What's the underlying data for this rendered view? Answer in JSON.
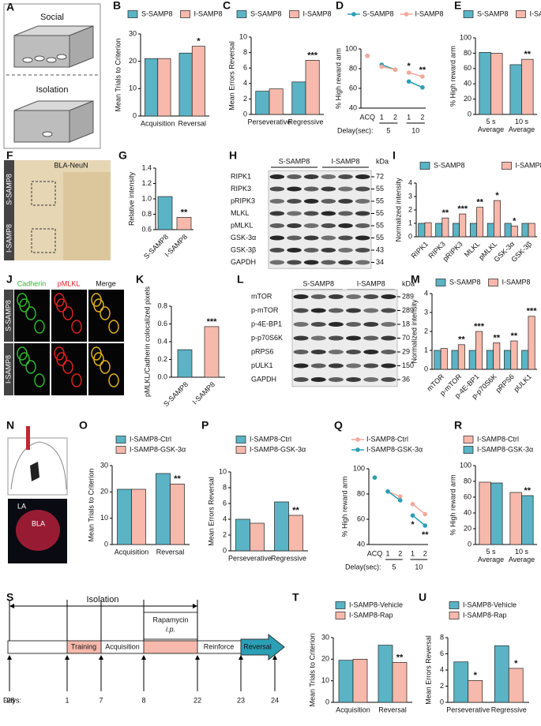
{
  "panels": {
    "A": {
      "letter": "A",
      "social": "Social",
      "isolation": "Isolation"
    },
    "F": {
      "letter": "F",
      "title": "BLA-NeuN",
      "rows": [
        "S-SAMP8",
        "I-SAMP8"
      ]
    },
    "H": {
      "letter": "H",
      "groups": [
        "S-SAMP8",
        "I-SAMP8"
      ],
      "unit": "kDa",
      "bands": [
        [
          "RIPK1",
          72
        ],
        [
          "RIPK3",
          55
        ],
        [
          "pRIPK3",
          55
        ],
        [
          "MLKL",
          55
        ],
        [
          "pMLKL",
          55
        ],
        [
          "GSK-3α",
          55
        ],
        [
          "GSK-3β",
          43
        ],
        [
          "GAPDH",
          34
        ]
      ]
    },
    "J": {
      "letter": "J",
      "columns": [
        "Cadherin",
        "pMLKL",
        "Merge"
      ],
      "rows": [
        "S-SAMP8",
        "I-SAMP8"
      ]
    },
    "L": {
      "letter": "L",
      "groups": [
        "S-SAMP8",
        "I-SAMP8"
      ],
      "unit": "kDa",
      "bands": [
        [
          "mTOR",
          289
        ],
        [
          "p-mTOR",
          289
        ],
        [
          "p-4E-BP1",
          18
        ],
        [
          "p-p70S6K",
          70
        ],
        [
          "pRPS6",
          29
        ],
        [
          "pULK1",
          150
        ],
        [
          "GAPDH",
          36
        ]
      ]
    },
    "N": {
      "letter": "N",
      "regions": [
        "LA",
        "BLA"
      ]
    },
    "S": {
      "letter": "S",
      "isolation": "Isolation",
      "drug": "Rapamycin",
      "route": "i.p.",
      "stages": [
        "Training",
        "Acquisition",
        "Reinforce",
        "Reversal"
      ],
      "days_label": "Days:",
      "days": [
        -28,
        1,
        7,
        8,
        22,
        23,
        24
      ]
    }
  },
  "chart_data": [
    {
      "type": "bar",
      "panel": "B",
      "ylabel": "Mean Trials to Criterion",
      "categories": [
        "Acquisition",
        "Reversal"
      ],
      "series": [
        {
          "name": "S-SAMP8",
          "color": "#5ab4c5",
          "values": [
            21,
            23
          ]
        },
        {
          "name": "I-SAMP8",
          "color": "#f7b9ab",
          "values": [
            21,
            25.5
          ],
          "significance": [
            null,
            "*"
          ]
        }
      ],
      "ylim": [
        0,
        30
      ],
      "yticks": [
        0,
        10,
        20,
        30
      ],
      "legend": "top"
    },
    {
      "type": "bar",
      "panel": "C",
      "ylabel": "Mean Errors Reversal",
      "categories": [
        "Perseverative",
        "Regressive"
      ],
      "series": [
        {
          "name": "S-SAMP8",
          "color": "#5ab4c5",
          "values": [
            3,
            4.2
          ]
        },
        {
          "name": "I-SAMP8",
          "color": "#f7b9ab",
          "values": [
            3.3,
            7
          ],
          "significance": [
            null,
            "***"
          ]
        }
      ],
      "ylim": [
        0,
        10
      ],
      "yticks": [
        0,
        2,
        4,
        6,
        8,
        10
      ],
      "legend": "top"
    },
    {
      "type": "line",
      "panel": "D",
      "ylabel": "% High reward arm",
      "categories": [
        "ACQ",
        "1",
        "2",
        "1",
        "2"
      ],
      "x_title": "Delay(sec):",
      "x_groups": [
        "5",
        "10"
      ],
      "series": [
        {
          "name": "S-SAMP8",
          "color": "#2a9fb5",
          "values": [
            93,
            84,
            79,
            67,
            61
          ]
        },
        {
          "name": "I-SAMP8",
          "color": "#f4a999",
          "values": [
            93,
            82,
            79,
            76,
            72
          ],
          "significance": [
            null,
            null,
            null,
            "*",
            "**"
          ]
        }
      ],
      "ylim": [
        40,
        100
      ],
      "yticks": [
        40,
        60,
        80,
        100
      ],
      "legend": "top"
    },
    {
      "type": "bar",
      "panel": "E",
      "ylabel": "% High reward arm",
      "categories": [
        "5 s Average",
        "10 s Average"
      ],
      "series": [
        {
          "name": "S-SAMP8",
          "color": "#5ab4c5",
          "values": [
            81,
            65
          ]
        },
        {
          "name": "I-SAMP8",
          "color": "#f7b9ab",
          "values": [
            80,
            72
          ],
          "significance": [
            null,
            "**"
          ]
        }
      ],
      "ylim": [
        0,
        100
      ],
      "yticks": [
        0,
        20,
        40,
        60,
        80,
        100
      ],
      "legend": "top"
    },
    {
      "type": "bar",
      "panel": "G",
      "ylabel": "Relative intensity",
      "categories": [
        "S-SAMP8",
        "I-SAMP8"
      ],
      "values": [
        1.03,
        0.76
      ],
      "colors": [
        "#5ab4c5",
        "#f7b9ab"
      ],
      "significance": [
        null,
        "**"
      ],
      "ylim": [
        0.6,
        1.4
      ],
      "yticks": [
        0.6,
        0.8,
        {
          "value": 1,
          "label": "1.0"
        },
        1.2,
        1.4
      ]
    },
    {
      "type": "bar",
      "panel": "I",
      "ylabel": "Normalized intensity",
      "categories": [
        "RIPK1",
        "RIPK3",
        "pRIPK3",
        "MLKL",
        "pMLKL",
        "GSK-3α",
        "GSK-3β"
      ],
      "series": [
        {
          "name": "S-SAMP8",
          "color": "#5ab4c5",
          "values": [
            1,
            1,
            1,
            1,
            1,
            1,
            1
          ]
        },
        {
          "name": "I-SAMP8",
          "color": "#f7b9ab",
          "values": [
            1.05,
            1.4,
            1.7,
            2.2,
            2.7,
            0.8,
            1
          ],
          "significance": [
            null,
            "**",
            "***",
            "**",
            "*",
            "*",
            null
          ]
        }
      ],
      "ylim": [
        0,
        4
      ],
      "yticks": [
        0,
        1,
        2,
        3,
        4
      ],
      "legend": "top"
    },
    {
      "type": "bar",
      "panel": "K",
      "ylabel": "pMLKL/Cadherin colocalized pixels",
      "categories": [
        "S-SAMP8",
        "I-SAMP8"
      ],
      "values": [
        0.31,
        0.57
      ],
      "colors": [
        "#5ab4c5",
        "#f7b9ab"
      ],
      "significance": [
        null,
        "***"
      ],
      "ylim": [
        0,
        0.8
      ],
      "yticks": [
        {
          "value": 0,
          "label": "0.0"
        },
        0.2,
        0.4,
        0.6,
        0.8
      ]
    },
    {
      "type": "bar",
      "panel": "M",
      "ylabel": "Normalized intensity",
      "categories": [
        "mTOR",
        "p-mTOR",
        "p-4E-BP1",
        "p-p70S6K",
        "pRPS6",
        "pULK1"
      ],
      "series": [
        {
          "name": "S-SAMP8",
          "color": "#5ab4c5",
          "values": [
            1,
            1,
            1,
            1,
            1,
            1
          ]
        },
        {
          "name": "I-SAMP8",
          "color": "#f7b9ab",
          "values": [
            1.1,
            1.3,
            2,
            1.4,
            1.5,
            2.8
          ],
          "significance": [
            null,
            "**",
            "***",
            "**",
            "**",
            "***"
          ]
        }
      ],
      "ylim": [
        0,
        4
      ],
      "yticks": [
        0,
        1,
        2,
        3,
        4
      ],
      "legend": "top"
    },
    {
      "type": "bar",
      "panel": "O",
      "ylabel": "Mean Trials to Criterion",
      "categories": [
        "Acquisition",
        "Reversal"
      ],
      "series": [
        {
          "name": "I-SAMP8-Ctrl",
          "color": "#5ab4c5",
          "values": [
            21,
            27
          ]
        },
        {
          "name": "I-SAMP8-GSK-3α",
          "color": "#f7b9ab",
          "values": [
            21,
            23
          ],
          "significance": [
            null,
            "**"
          ]
        }
      ],
      "ylim": [
        0,
        30
      ],
      "yticks": [
        0,
        10,
        20,
        30
      ],
      "legend": "top"
    },
    {
      "type": "bar",
      "panel": "P",
      "ylabel": "Mean Errors Reversal",
      "categories": [
        "Perseverative",
        "Regressive"
      ],
      "series": [
        {
          "name": "I-SAMP8-Ctrl",
          "color": "#5ab4c5",
          "values": [
            4,
            6.2
          ]
        },
        {
          "name": "I-SAMP8-GSK-3α",
          "color": "#f7b9ab",
          "values": [
            3.5,
            4.5
          ],
          "significance": [
            null,
            "**"
          ]
        }
      ],
      "ylim": [
        0,
        10
      ],
      "yticks": [
        0,
        2,
        4,
        6,
        8,
        10
      ],
      "legend": "top"
    },
    {
      "type": "line",
      "panel": "Q",
      "ylabel": "% High reward arm",
      "categories": [
        "ACQ",
        "1",
        "2",
        "1",
        "2"
      ],
      "x_title": "Delay(sec):",
      "x_groups": [
        "5",
        "10"
      ],
      "series": [
        {
          "name": "I-SAMP8-Ctrl",
          "color": "#f4a999",
          "values": [
            93,
            82,
            78,
            72,
            64
          ]
        },
        {
          "name": "I-SAMP8-GSK-3α",
          "color": "#2a9fb5",
          "values": [
            93,
            82,
            75,
            63,
            55
          ],
          "significance": [
            null,
            null,
            null,
            "*",
            "**"
          ]
        }
      ],
      "ylim": [
        40,
        100
      ],
      "yticks": [
        40,
        60,
        80,
        100
      ],
      "legend": "top"
    },
    {
      "type": "bar",
      "panel": "R",
      "ylabel": "% High reward arm",
      "categories": [
        "5 s Average",
        "10 s Average"
      ],
      "series": [
        {
          "name": "I-SAMP8-Ctrl",
          "color": "#f7b9ab",
          "values": [
            79,
            66
          ]
        },
        {
          "name": "I-SAMP8-GSK-3α",
          "color": "#5ab4c5",
          "values": [
            78,
            62
          ],
          "significance": [
            null,
            "**"
          ]
        }
      ],
      "ylim": [
        0,
        100
      ],
      "yticks": [
        0,
        20,
        40,
        60,
        80,
        100
      ],
      "legend": "top"
    },
    {
      "type": "bar",
      "panel": "T",
      "ylabel": "Mean Trials to Criterion",
      "categories": [
        "Acquisition",
        "Reversal"
      ],
      "series": [
        {
          "name": "I-SAMP8-Vehicle",
          "color": "#5ab4c5",
          "values": [
            19.5,
            26.5
          ]
        },
        {
          "name": "I-SAMP8-Rap",
          "color": "#f7b9ab",
          "values": [
            20,
            18.5
          ],
          "significance": [
            null,
            "**"
          ]
        }
      ],
      "ylim": [
        0,
        30
      ],
      "yticks": [
        0,
        10,
        20,
        30
      ],
      "legend": "top"
    },
    {
      "type": "bar",
      "panel": "U",
      "ylabel": "Mean Errors Reversal",
      "categories": [
        "Perseverative",
        "Regressive"
      ],
      "series": [
        {
          "name": "I-SAMP8-Vehicle",
          "color": "#5ab4c5",
          "values": [
            5,
            7
          ]
        },
        {
          "name": "I-SAMP8-Rap",
          "color": "#f7b9ab",
          "values": [
            2.7,
            4.2
          ],
          "significance": [
            "*",
            "*"
          ]
        }
      ],
      "ylim": [
        0,
        8
      ],
      "yticks": [
        0,
        2,
        4,
        6,
        8
      ],
      "legend": "top"
    }
  ]
}
